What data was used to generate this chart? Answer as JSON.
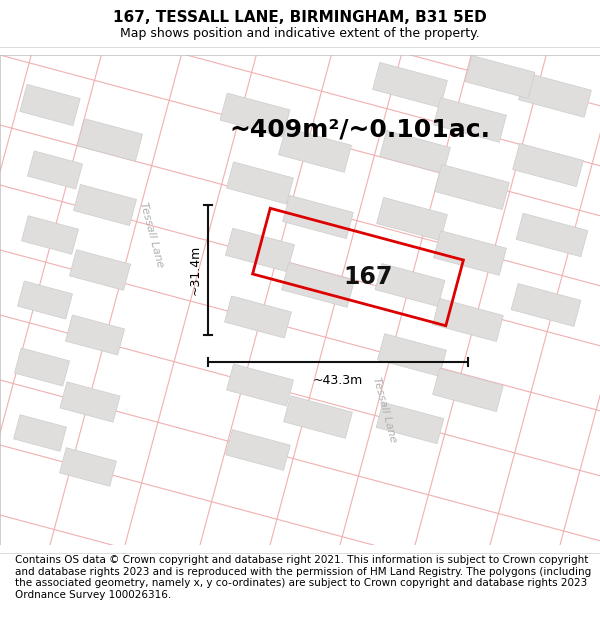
{
  "title_line1": "167, TESSALL LANE, BIRMINGHAM, B31 5ED",
  "title_line2": "Map shows position and indicative extent of the property.",
  "footer_text": "Contains OS data © Crown copyright and database right 2021. This information is subject to Crown copyright and database rights 2023 and is reproduced with the permission of HM Land Registry. The polygons (including the associated geometry, namely x, y co-ordinates) are subject to Crown copyright and database rights 2023 Ordnance Survey 100026316.",
  "area_text": "~409m²/~0.101ac.",
  "property_number": "167",
  "dim_vertical": "~31.4m",
  "dim_horizontal": "~43.3m",
  "road_label_upper": "Tessall Lane",
  "road_label_lower": "Tessall Lane",
  "map_bg": "#ffffff",
  "road_line_color": "#f0b0b0",
  "block_color": "#e0dedd",
  "block_edge_color": "#cccccc",
  "plot_color": "#dd0000",
  "dim_color": "#111111",
  "title_fontsize": 11,
  "subtitle_fontsize": 9,
  "area_fontsize": 18,
  "footer_fontsize": 7.5,
  "road_label_color": "#b0b0b0"
}
